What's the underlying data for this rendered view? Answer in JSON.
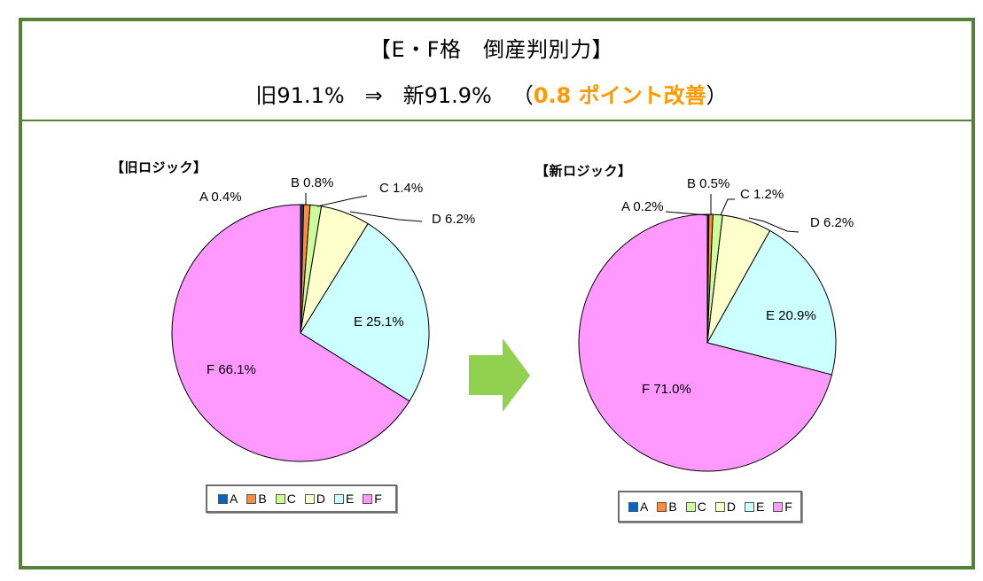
{
  "header": {
    "title_line1": "【E・F格　倒産判別力】",
    "line2_old_label": "旧",
    "line2_old_value": "91.1%",
    "line2_arrow": "⇒",
    "line2_new_label": "新",
    "line2_new_value": "91.9%",
    "line2_open_paren": "（",
    "line2_highlight": "0.8 ポイント改善",
    "line2_close_paren": "）"
  },
  "colors": {
    "frame": "#538135",
    "highlight": "#ff9900",
    "arrow": "#92d050",
    "A": "#0066cc",
    "A_slice": "#1f3864",
    "B": "#ff8c3a",
    "C": "#ccff99",
    "D": "#ffffcc",
    "E": "#ccffff",
    "F": "#ff99ff"
  },
  "arrow_icon": "right-arrow",
  "chart_data": [
    {
      "type": "pie",
      "title": "【旧ロジック】",
      "categories": [
        "A",
        "B",
        "C",
        "D",
        "E",
        "F"
      ],
      "values": [
        0.4,
        0.8,
        1.4,
        6.2,
        25.1,
        66.1
      ],
      "labels": [
        "A 0.4%",
        "B 0.8%",
        "C 1.4%",
        "D 6.2%",
        "E 25.1%",
        "F 66.1%"
      ],
      "legend": [
        "A",
        "B",
        "C",
        "D",
        "E",
        "F"
      ],
      "legend_position": "bottom",
      "start_angle": "12 o'clock, clockwise"
    },
    {
      "type": "pie",
      "title": "【新ロジック】",
      "categories": [
        "A",
        "B",
        "C",
        "D",
        "E",
        "F"
      ],
      "values": [
        0.2,
        0.5,
        1.2,
        6.2,
        20.9,
        71.0
      ],
      "labels": [
        "A 0.2%",
        "B 0.5%",
        "C 1.2%",
        "D 6.2%",
        "E 20.9%",
        "F 71.0%"
      ],
      "legend": [
        "A",
        "B",
        "C",
        "D",
        "E",
        "F"
      ],
      "legend_position": "bottom",
      "start_angle": "12 o'clock, clockwise"
    }
  ]
}
